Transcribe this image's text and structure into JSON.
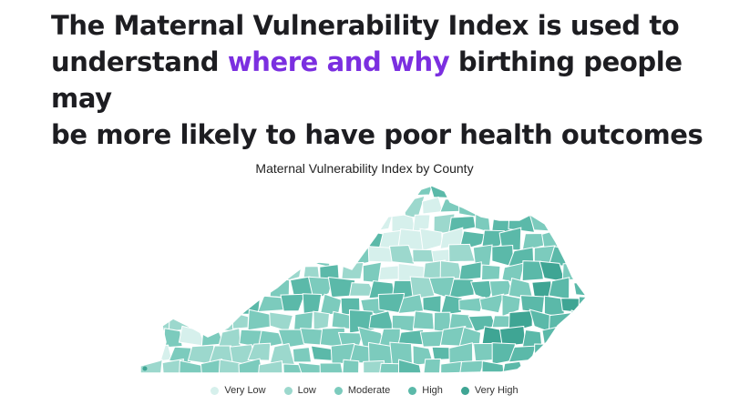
{
  "headline": {
    "line1": "The Maternal Vulnerability Index is used to",
    "line2_prefix": "understand ",
    "line2_highlight": "where and why",
    "line2_suffix": " birthing people may",
    "line3": "be more likely to have poor health outcomes",
    "highlight_color": "#7b2fe0"
  },
  "map": {
    "title": "Maternal Vulnerability Index by County",
    "region": "Kentucky counties",
    "border_color": "#ffffff"
  },
  "legend": [
    {
      "label": "Very Low",
      "color": "#d6f0ec"
    },
    {
      "label": "Low",
      "color": "#9cd8cd"
    },
    {
      "label": "Moderate",
      "color": "#7ccbbd"
    },
    {
      "label": "High",
      "color": "#5bb9a9"
    },
    {
      "label": "Very High",
      "color": "#3fa594"
    }
  ]
}
